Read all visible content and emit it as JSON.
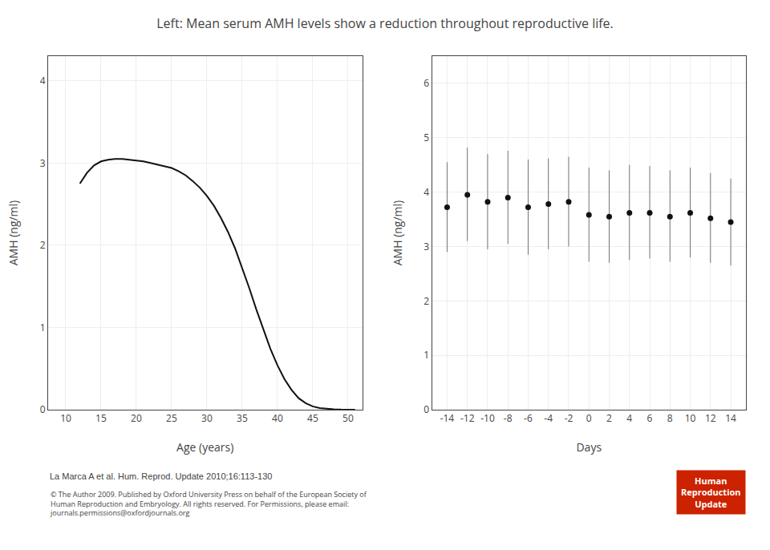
{
  "title": "Left: Mean serum AMH levels show a reduction throughout reproductive life.",
  "annotations": [
    "La Marca A et al. Hum. Reprod. Update 2010;16:113-130",
    "© The Author 2009. Published by Oxford University Press on behalf of the European Society of\nHuman Reproduction and Embryology. All rights reserved. For Permissions, please email:\njournals.permissions@oxfordjournals.org",
    "Human",
    "Reproduction",
    "Update"
  ],
  "chart_data": [
    {
      "type": "line",
      "xlabel": "Age (years)",
      "ylabel": "AMH (ng/ml)",
      "x": [
        12,
        13,
        14,
        15,
        16,
        17,
        18,
        19,
        20,
        21,
        22,
        23,
        24,
        25,
        26,
        27,
        28,
        29,
        30,
        31,
        32,
        33,
        34,
        35,
        36,
        37,
        38,
        39,
        40,
        41,
        42,
        43,
        44,
        45,
        46,
        47,
        48,
        49,
        50,
        51
      ],
      "values": [
        2.75,
        2.88,
        2.97,
        3.02,
        3.04,
        3.05,
        3.05,
        3.04,
        3.03,
        3.02,
        3.0,
        2.98,
        2.96,
        2.94,
        2.9,
        2.85,
        2.78,
        2.7,
        2.6,
        2.48,
        2.33,
        2.16,
        1.96,
        1.73,
        1.48,
        1.22,
        0.97,
        0.74,
        0.54,
        0.37,
        0.24,
        0.14,
        0.08,
        0.04,
        0.02,
        0.01,
        0.005,
        0.002,
        0.001,
        0.0
      ],
      "color": "#111111",
      "xlim": [
        7.5,
        52
      ],
      "xticks": [
        10,
        15,
        20,
        25,
        30,
        35,
        40,
        45,
        50
      ],
      "ylim": [
        0,
        4.3
      ],
      "yticks": [
        0,
        1,
        2,
        3,
        4
      ],
      "grid": true
    },
    {
      "type": "scatter",
      "xlabel": "Days",
      "ylabel": "AMH (ng/ml)",
      "x": [
        -14,
        -12,
        -10,
        -8,
        -6,
        -4,
        -2,
        0,
        2,
        4,
        6,
        8,
        10,
        12,
        14
      ],
      "values": [
        3.72,
        3.95,
        3.82,
        3.9,
        3.72,
        3.78,
        3.82,
        3.58,
        3.55,
        3.62,
        3.62,
        3.55,
        3.62,
        3.52,
        3.45
      ],
      "upper": [
        4.55,
        4.82,
        4.7,
        4.76,
        4.6,
        4.62,
        4.65,
        4.45,
        4.4,
        4.5,
        4.48,
        4.4,
        4.45,
        4.35,
        4.25
      ],
      "lower": [
        2.9,
        3.1,
        2.95,
        3.05,
        2.85,
        2.95,
        3.0,
        2.72,
        2.7,
        2.75,
        2.78,
        2.72,
        2.8,
        2.7,
        2.65
      ],
      "color": "#111111",
      "marker": "circle",
      "xlim": [
        -15.5,
        15.5
      ],
      "xticks": [
        -14,
        -12,
        -10,
        -8,
        -6,
        -4,
        -2,
        0,
        2,
        4,
        6,
        8,
        10,
        12,
        14
      ],
      "ylim": [
        0,
        6.5
      ],
      "yticks": [
        0,
        1,
        2,
        3,
        4,
        5,
        6
      ],
      "grid": true
    }
  ]
}
